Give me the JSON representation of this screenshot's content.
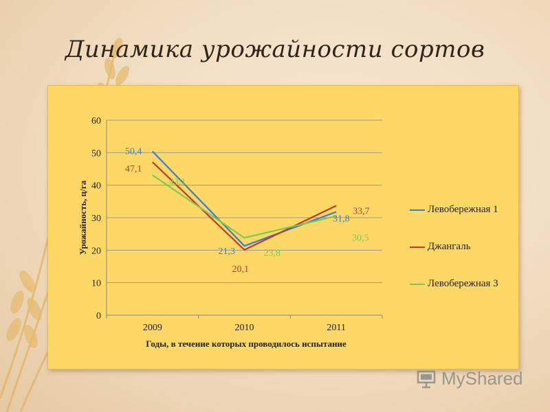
{
  "slide": {
    "title": "Динамика урожайности сортов",
    "logo_text": "MyShared"
  },
  "colors": {
    "panel": "#fdd866",
    "series1": "#3a7dc9",
    "series2": "#c0392b",
    "series3": "#7ec850"
  },
  "chart_data": {
    "type": "line",
    "title": "",
    "xlabel": "Годы, в течение которых проводилось испытание",
    "ylabel": "Урожайность, ц/га",
    "categories": [
      "2009",
      "2010",
      "2011"
    ],
    "ylim": [
      0,
      60
    ],
    "yticks": [
      0,
      10,
      20,
      30,
      40,
      50,
      60
    ],
    "grid": true,
    "legend_position": "right",
    "series": [
      {
        "name": "Левобережная 1",
        "values": [
          50.4,
          21.3,
          31.8
        ],
        "labels": [
          "50,4",
          "21,3",
          "31,8"
        ],
        "color": "#3a7dc9"
      },
      {
        "name": "Джангаль",
        "values": [
          47.1,
          20.1,
          33.7
        ],
        "labels": [
          "47,1",
          "20,1",
          "33,7"
        ],
        "color": "#c0392b"
      },
      {
        "name": "Левобережная 3",
        "values": [
          43.1,
          23.8,
          30.5
        ],
        "labels": [
          "43,1",
          "23,8",
          "30,5"
        ],
        "color": "#7ec850"
      }
    ]
  }
}
